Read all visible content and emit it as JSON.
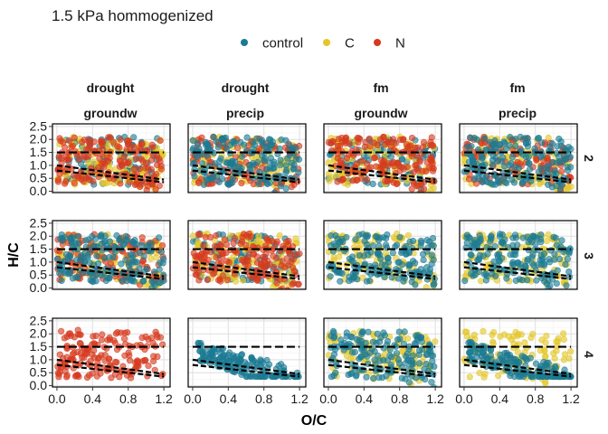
{
  "chart_data": {
    "type": "scatter",
    "title": "1.5 kPa hommogenized",
    "xlabel": "O/C",
    "ylabel": "H/C",
    "xlim": [
      -0.05,
      1.27
    ],
    "ylim": [
      -0.05,
      2.6
    ],
    "x_ticks": [
      "0.0",
      "0.4",
      "0.8",
      "1.2"
    ],
    "x_tick_values": [
      0.0,
      0.4,
      0.8,
      1.2
    ],
    "y_ticks": [
      "0.0",
      "0.5",
      "1.0",
      "1.5",
      "2.0",
      "2.5"
    ],
    "y_tick_values": [
      0.0,
      0.5,
      1.0,
      1.5,
      2.0,
      2.5
    ],
    "grid": true,
    "legend": {
      "position": "top",
      "entries": [
        {
          "name": "control",
          "color": "#1b7a93"
        },
        {
          "name": "C",
          "color": "#e3c72a"
        },
        {
          "name": "N",
          "color": "#d63a1e"
        }
      ]
    },
    "columns": [
      {
        "top": "drought",
        "bottom": "groundw"
      },
      {
        "top": "drought",
        "bottom": "precip"
      },
      {
        "top": "fm",
        "bottom": "groundw"
      },
      {
        "top": "fm",
        "bottom": "precip"
      }
    ],
    "rows": [
      "2",
      "3",
      "4"
    ],
    "reference_lines": [
      {
        "style": "dashed",
        "points": [
          [
            0.0,
            1.5
          ],
          [
            1.2,
            1.5
          ]
        ]
      },
      {
        "style": "dashed",
        "points": [
          [
            0.0,
            1.0
          ],
          [
            1.2,
            0.45
          ]
        ]
      },
      {
        "style": "dashed",
        "points": [
          [
            0.0,
            0.8
          ],
          [
            1.2,
            0.35
          ]
        ]
      }
    ],
    "facets": [
      {
        "row": "2",
        "col": 0,
        "present": [
          "control",
          "C",
          "N"
        ],
        "top_series": "N"
      },
      {
        "row": "2",
        "col": 1,
        "present": [
          "control",
          "C",
          "N"
        ],
        "top_series": "control"
      },
      {
        "row": "2",
        "col": 2,
        "present": [
          "control",
          "C",
          "N"
        ],
        "top_series": "N"
      },
      {
        "row": "2",
        "col": 3,
        "present": [
          "control",
          "C",
          "N"
        ],
        "top_series": "control"
      },
      {
        "row": "3",
        "col": 0,
        "present": [
          "control",
          "C",
          "N"
        ],
        "top_series": "control"
      },
      {
        "row": "3",
        "col": 1,
        "present": [
          "control",
          "C",
          "N"
        ],
        "top_series": "N"
      },
      {
        "row": "3",
        "col": 2,
        "present": [
          "control",
          "C"
        ],
        "top_series": "control"
      },
      {
        "row": "3",
        "col": 3,
        "present": [
          "control",
          "C"
        ],
        "top_series": "control"
      },
      {
        "row": "4",
        "col": 0,
        "present": [
          "N"
        ],
        "top_series": "N"
      },
      {
        "row": "4",
        "col": 1,
        "present": [
          "control"
        ],
        "top_series": "control"
      },
      {
        "row": "4",
        "col": 2,
        "present": [
          "control",
          "C"
        ],
        "top_series": "control"
      },
      {
        "row": "4",
        "col": 3,
        "present": [
          "control",
          "C"
        ],
        "top_series": "control"
      }
    ]
  }
}
